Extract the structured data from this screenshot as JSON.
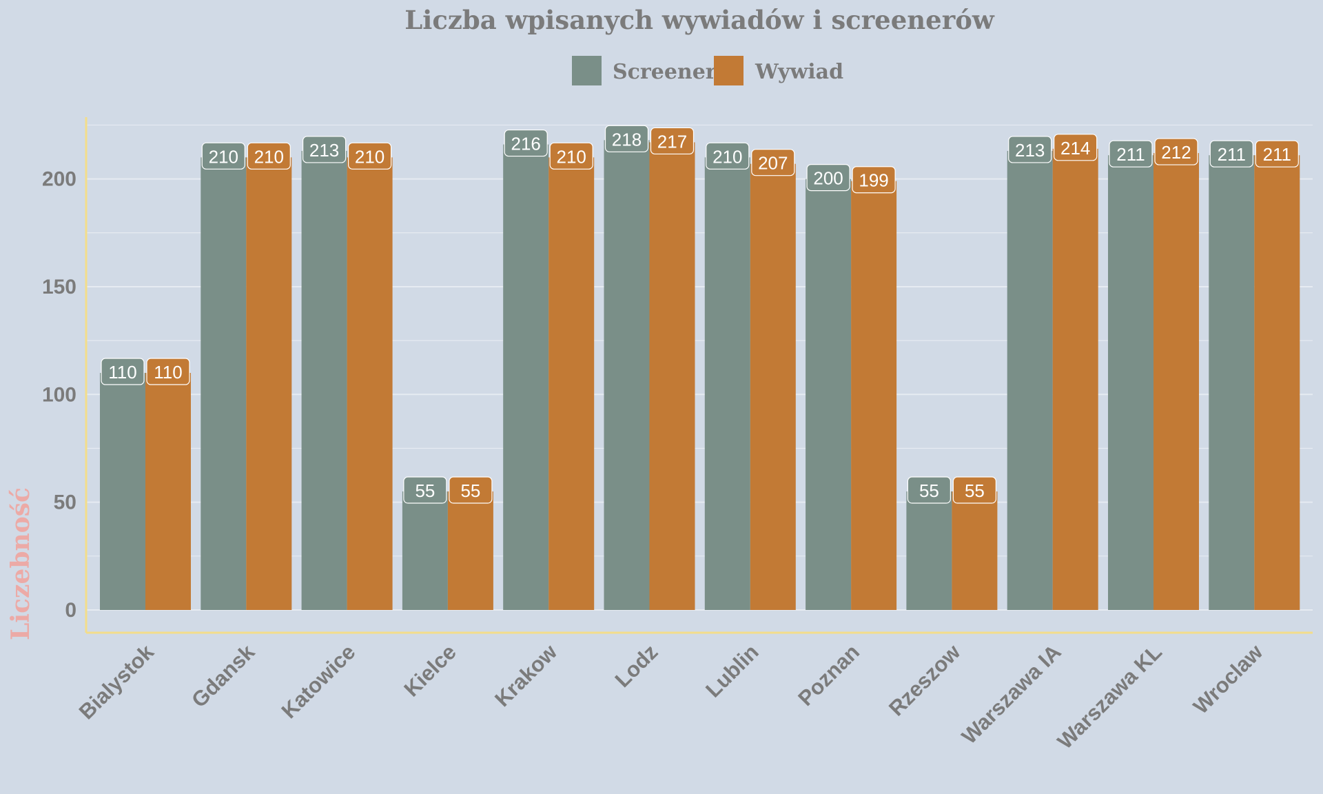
{
  "colors": {
    "background": "#d1dae6",
    "screener": "#7a8f88",
    "wywiad": "#c27a35",
    "axis": "#f3dd8a",
    "gridline": "#e6ebf2",
    "text": "#7b7b7b",
    "ylabel": "#ecaaa6"
  },
  "chart_data": {
    "type": "bar",
    "title": "Liczba wpisanych wywiadów i screenerów",
    "xlabel": "",
    "ylabel": "Liczebność",
    "ylim": [
      0,
      230
    ],
    "yticks": [
      0,
      50,
      100,
      150,
      200
    ],
    "grid": true,
    "legend_position": "top-center",
    "categories": [
      "Bialystok",
      "Gdansk",
      "Katowice",
      "Kielce",
      "Krakow",
      "Lodz",
      "Lublin",
      "Poznan",
      "Rzeszow",
      "Warszawa IA",
      "Warszawa KL",
      "Wroclaw"
    ],
    "series": [
      {
        "name": "Screener",
        "values": [
          110,
          210,
          213,
          55,
          216,
          218,
          210,
          200,
          55,
          213,
          211,
          211
        ]
      },
      {
        "name": "Wywiad",
        "values": [
          110,
          210,
          210,
          55,
          210,
          217,
          207,
          199,
          55,
          214,
          212,
          211
        ]
      }
    ]
  }
}
